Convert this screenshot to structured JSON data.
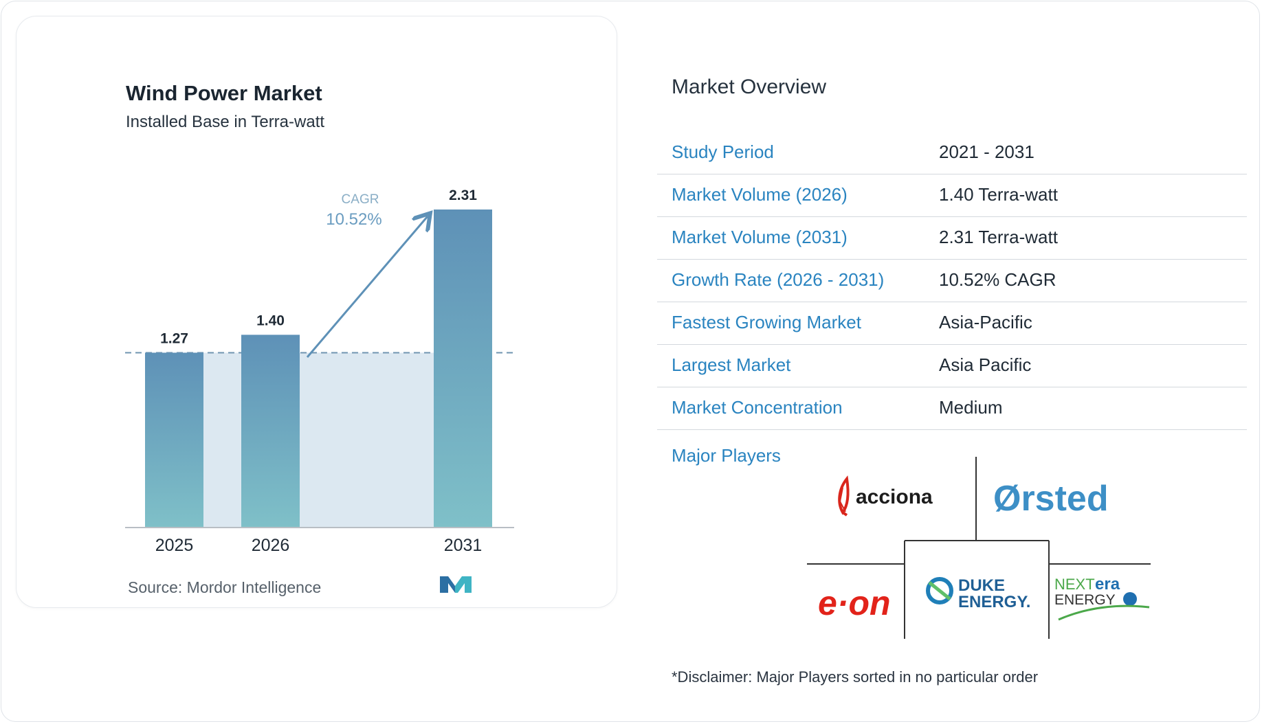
{
  "chart_data": {
    "type": "bar",
    "title": "Wind Power Market",
    "subtitle": "Installed Base in Terra-watt",
    "categories": [
      "2025",
      "2026",
      "2031"
    ],
    "values": [
      1.27,
      1.4,
      2.31
    ],
    "value_labels": [
      "1.27",
      "1.40",
      "2.31"
    ],
    "ylim": [
      0,
      2.31
    ],
    "grid": false,
    "annotation": {
      "label": "CAGR",
      "value": "10.52%"
    },
    "bar_color_top": "#5e91b7",
    "bar_color_bottom": "#7fc0c8",
    "band_color": "#dce8f1"
  },
  "source": "Source: Mordor Intelligence",
  "overview": {
    "title": "Market Overview",
    "rows": [
      {
        "label": "Study Period",
        "value": "2021 - 2031"
      },
      {
        "label": "Market Volume (2026)",
        "value": "1.40 Terra-watt"
      },
      {
        "label": "Market Volume (2031)",
        "value": "2.31 Terra-watt"
      },
      {
        "label": "Growth Rate (2026 - 2031)",
        "value": "10.52% CAGR"
      },
      {
        "label": "Fastest Growing Market",
        "value": "Asia-Pacific"
      },
      {
        "label": "Largest Market",
        "value": "Asia Pacific"
      },
      {
        "label": "Market Concentration",
        "value": "Medium"
      }
    ]
  },
  "players": {
    "label": "Major Players",
    "logos": {
      "acciona": "acciona",
      "orsted": "Ørsted",
      "eon": "e·on",
      "duke_line1": "DUKE",
      "duke_line2": "ENERGY.",
      "nextera_next": "NEXT",
      "nextera_era": "era",
      "nextera_energy": "ENERGY"
    }
  },
  "disclaimer": "*Disclaimer: Major Players sorted in no particular order",
  "colors": {
    "accent": "#2a84c0",
    "eon_red": "#e2231a",
    "orsted_blue": "#3d8fc6",
    "nextera_green": "#4ba84a"
  }
}
